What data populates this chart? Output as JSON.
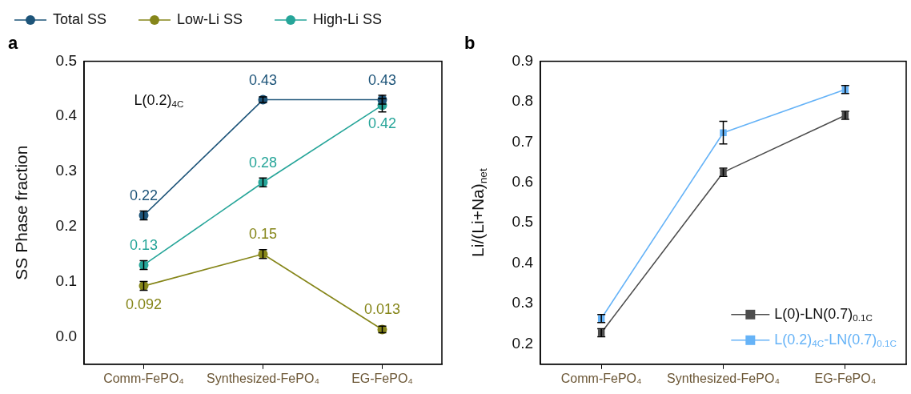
{
  "chart_data": [
    {
      "type": "line",
      "title": "a",
      "categories": [
        "Comm-FePO₄",
        "Synthesized-FePO₄",
        "EG-FePO₄"
      ],
      "ylabel": "SS Phase fraction",
      "ylim": [
        -0.05,
        0.5
      ],
      "yticks": [
        {
          "value": 0,
          "label": "0.0"
        },
        0.1,
        0.2,
        0.3,
        0.4,
        0.5
      ],
      "legend": "top",
      "marker": "circle",
      "data_labels": true,
      "annotations": [
        "L(0.2)$_{4C}$"
      ],
      "series": [
        {
          "name": "Total SS",
          "color": "#1d5479",
          "values": [
            0.22,
            0.43,
            0.43
          ],
          "errors": [
            0.008,
            0.005,
            0.008
          ]
        },
        {
          "name": "Low-Li SS",
          "color": "#86861a",
          "values": [
            0.092,
            0.15,
            0.013
          ],
          "errors": [
            0.008,
            0.008,
            0.006
          ]
        },
        {
          "name": "High-Li SS",
          "color": "#26a599",
          "values": [
            0.13,
            0.28,
            0.42
          ],
          "errors": [
            0.008,
            0.008,
            0.012
          ]
        }
      ]
    },
    {
      "type": "line",
      "title": "b",
      "categories": [
        "Comm-FePO₄",
        "Synthesized-FePO₄",
        "EG-FePO₄"
      ],
      "ylabel": "Li/(Li+Na)$_{net}$",
      "ylim": [
        0.15,
        0.9
      ],
      "yticks": [
        0.2,
        0.3,
        0.4,
        0.5,
        0.6,
        0.7,
        0.8,
        0.9
      ],
      "legend": "bottom right",
      "marker": "square",
      "series": [
        {
          "name": "L(0)-LN(0.7)$_{0.1C}$",
          "color": "#4d4d4d",
          "values": [
            0.228,
            0.625,
            0.766
          ],
          "errors": [
            0.01,
            0.01,
            0.01
          ]
        },
        {
          "name": "L(0.2)$_{4C}$-LN(0.7)$_{0.1C}$",
          "color": "#66b3f7",
          "values": [
            0.263,
            0.723,
            0.83
          ],
          "errors": [
            0.01,
            0.028,
            0.01
          ]
        }
      ]
    }
  ]
}
